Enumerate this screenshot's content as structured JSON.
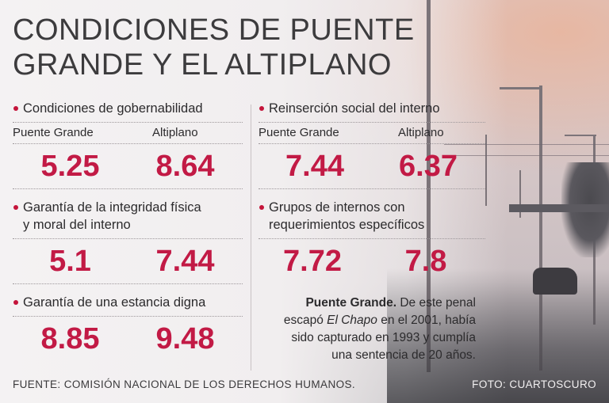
{
  "title": {
    "line1": "CONDICIONES DE PUENTE",
    "line2": "GRANDE Y EL ALTIPLANO"
  },
  "columns": {
    "puente_grande": "Puente Grande",
    "altiplano": "Altiplano"
  },
  "sections": [
    {
      "title": "Condiciones de gobernabilidad",
      "puente_grande": "5.25",
      "altiplano": "8.64"
    },
    {
      "title_line1": "Garantía de la integridad física",
      "title_line2": "y moral del interno",
      "puente_grande": "5.1",
      "altiplano": "7.44"
    },
    {
      "title": "Garantía de una estancia digna",
      "puente_grande": "8.85",
      "altiplano": "9.48"
    },
    {
      "title": "Reinserción social del interno",
      "puente_grande": "7.44",
      "altiplano": "6.37"
    },
    {
      "title_line1": "Grupos de internos con",
      "title_line2": "requerimientos específicos",
      "puente_grande": "7.72",
      "altiplano": "7.8"
    }
  ],
  "note": {
    "bold": "Puente Grande.",
    "text1": " De este penal",
    "text2": "escapó ",
    "italic": "El Chapo",
    "text3": " en el 2001, había",
    "text4": "sido capturado en 1993 y cumplía",
    "text5": "una sentencia de 20 años."
  },
  "footer": {
    "source": "FUENTE: COMISIÓN NACIONAL DE LOS DERECHOS HUMANOS.",
    "photo_credit": "FOTO: CUARTOSCURO"
  },
  "colors": {
    "accent": "#c21a45",
    "bullet": "#c4143a",
    "text": "#2c2b2d"
  }
}
